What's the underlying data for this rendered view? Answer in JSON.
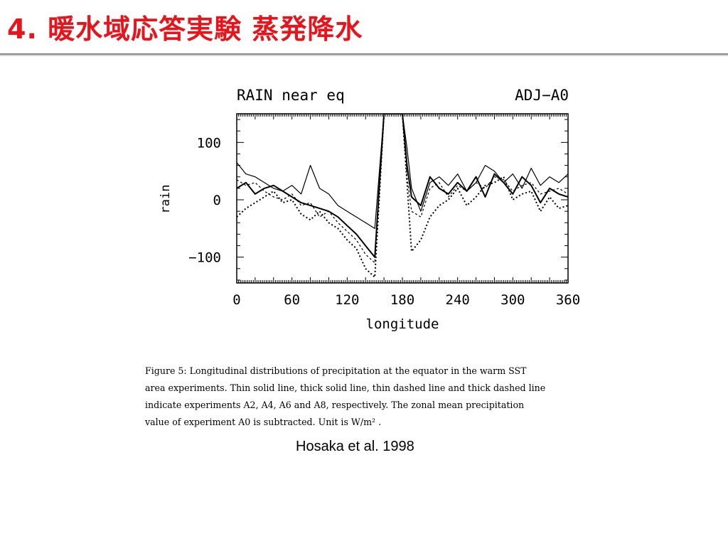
{
  "slide": {
    "title": "4. 暖水域応答実験 蒸発降水",
    "caption_lines": [
      "Figure 5:  Longitudinal distributions of precipitation at the equator in the warm SST",
      "area experiments. Thin solid line, thick solid line, thin dashed line and thick dashed line",
      "indicate experiments A2, A4, A6 and A8, respectively.  The zonal mean precipitation",
      "value of experiment A0 is subtracted.  Unit is W/m² ."
    ],
    "citation": "Hosaka et al. 1998"
  },
  "chart_data": {
    "type": "line",
    "title": "RAIN near eq",
    "subtitle": "ADJ−A0",
    "xlabel": "longitude",
    "ylabel": "rain",
    "xlim": [
      0,
      360
    ],
    "ylim": [
      -145,
      150
    ],
    "x_ticks": [
      0,
      60,
      120,
      180,
      240,
      300,
      360
    ],
    "y_ticks": [
      -100,
      0,
      100
    ],
    "x_tick_labels": [
      "0",
      "60",
      "120",
      "180",
      "240",
      "300",
      "360"
    ],
    "y_tick_labels": [
      "−100",
      "0",
      "100"
    ],
    "grid": false,
    "x": [
      0,
      10,
      20,
      30,
      40,
      50,
      60,
      70,
      80,
      90,
      100,
      110,
      120,
      130,
      140,
      150,
      160,
      165,
      170,
      175,
      180,
      185,
      190,
      200,
      210,
      220,
      230,
      240,
      250,
      260,
      270,
      280,
      290,
      300,
      310,
      320,
      330,
      340,
      350,
      360
    ],
    "series": [
      {
        "style": "thin-solid",
        "values": [
          65,
          45,
          40,
          30,
          20,
          15,
          25,
          10,
          60,
          20,
          10,
          -10,
          -20,
          -30,
          -40,
          -50,
          150,
          150,
          150,
          150,
          150,
          90,
          20,
          -20,
          30,
          40,
          25,
          45,
          15,
          30,
          60,
          50,
          30,
          45,
          20,
          55,
          25,
          40,
          30,
          45
        ]
      },
      {
        "style": "thick-solid",
        "values": [
          20,
          30,
          10,
          20,
          25,
          15,
          5,
          -5,
          -10,
          -15,
          -20,
          -30,
          -45,
          -60,
          -80,
          -100,
          150,
          150,
          150,
          150,
          150,
          60,
          5,
          -10,
          40,
          20,
          10,
          30,
          15,
          40,
          5,
          45,
          30,
          10,
          40,
          25,
          -5,
          20,
          10,
          5
        ]
      },
      {
        "style": "thin-dashed",
        "values": [
          35,
          25,
          30,
          15,
          5,
          0,
          10,
          -10,
          -5,
          -30,
          -20,
          -40,
          -55,
          -70,
          -95,
          -110,
          150,
          150,
          150,
          150,
          150,
          40,
          -20,
          -30,
          20,
          30,
          5,
          25,
          15,
          30,
          20,
          40,
          35,
          15,
          25,
          30,
          10,
          15,
          20,
          10
        ]
      },
      {
        "style": "thick-dashed",
        "values": [
          -30,
          -15,
          -5,
          5,
          15,
          -5,
          0,
          -25,
          -35,
          -20,
          -40,
          -50,
          -70,
          -85,
          -120,
          -135,
          150,
          150,
          150,
          150,
          150,
          30,
          -90,
          -70,
          -30,
          -10,
          0,
          20,
          -10,
          5,
          25,
          30,
          40,
          0,
          10,
          15,
          -20,
          5,
          -15,
          -10
        ]
      }
    ],
    "colors": {
      "axis": "#000000",
      "line": "#000000",
      "title": "#e8141c"
    }
  }
}
